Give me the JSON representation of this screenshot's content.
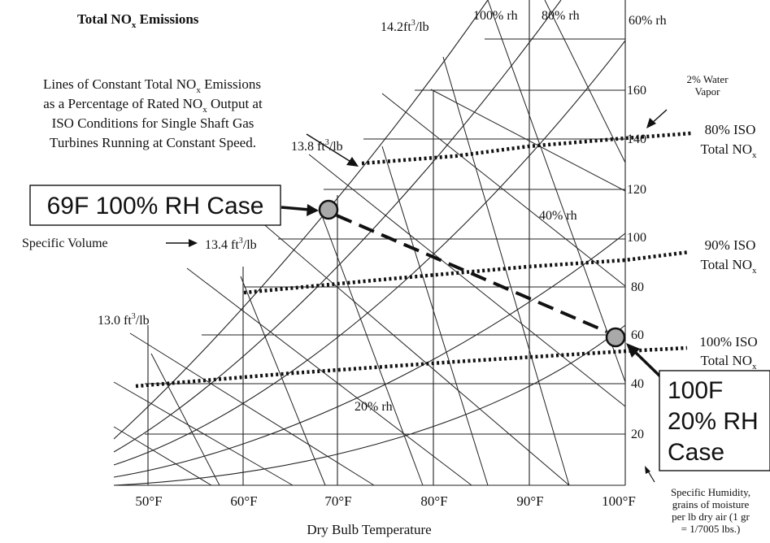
{
  "title": {
    "main": "Total NO",
    "sub": "x",
    "tail": " Emissions"
  },
  "description_lines": [
    {
      "text": "Lines of Constant Total NO",
      "sub": "x",
      "tail": " Emissions"
    },
    {
      "text": "as a Percentage of Rated NO",
      "sub": "x",
      "tail": " Output at"
    },
    {
      "text": "ISO Conditions for Single Shaft Gas",
      "sub": "",
      "tail": ""
    },
    {
      "text": "Turbines Running at Constant Speed.",
      "sub": "",
      "tail": ""
    }
  ],
  "x_axis": {
    "label": "Dry Bulb Temperature",
    "ticks": [
      "50°F",
      "60°F",
      "70°F",
      "80°F",
      "90°F",
      "100°F"
    ]
  },
  "y_axis": {
    "ticks": [
      "20",
      "40",
      "60",
      "80",
      "100",
      "120",
      "140",
      "160"
    ],
    "caption": [
      "Specific Humidity,",
      "grains of moisture",
      "per lb dry air (1 gr",
      "= 1/7005 lbs.)"
    ]
  },
  "rh_labels": [
    "100% rh",
    "80% rh",
    "60% rh",
    "40% rh",
    "20% rh"
  ],
  "volume_labels": {
    "v142": {
      "text": "14.2ft",
      "sup": "3",
      "tail": "/lb"
    },
    "v138": {
      "text": "13.8 ft",
      "sup": "3",
      "tail": "/lb"
    },
    "v134": {
      "text": "13.4 ft",
      "sup": "3",
      "tail": "/lb"
    },
    "v130": {
      "text": "13.0 ft",
      "sup": "3",
      "tail": "/lb"
    },
    "specific_volume": "Specific Volume"
  },
  "water_vapor": [
    "2% Water",
    "Vapor"
  ],
  "iso_labels": [
    {
      "line1": "80% ISO",
      "line2": "Total NO",
      "sub": "x"
    },
    {
      "line1": "90% ISO",
      "line2": "Total NO",
      "sub": "x"
    },
    {
      "line1": "100% ISO",
      "line2": "Total NO",
      "sub": "x"
    }
  ],
  "cases": {
    "case1": "69F 100% RH Case",
    "case2": [
      "100F",
      "20% RH",
      "Case"
    ]
  },
  "colors": {
    "marker_fill": "#a9a9a9",
    "line": "#111111",
    "background": "#ffffff"
  }
}
